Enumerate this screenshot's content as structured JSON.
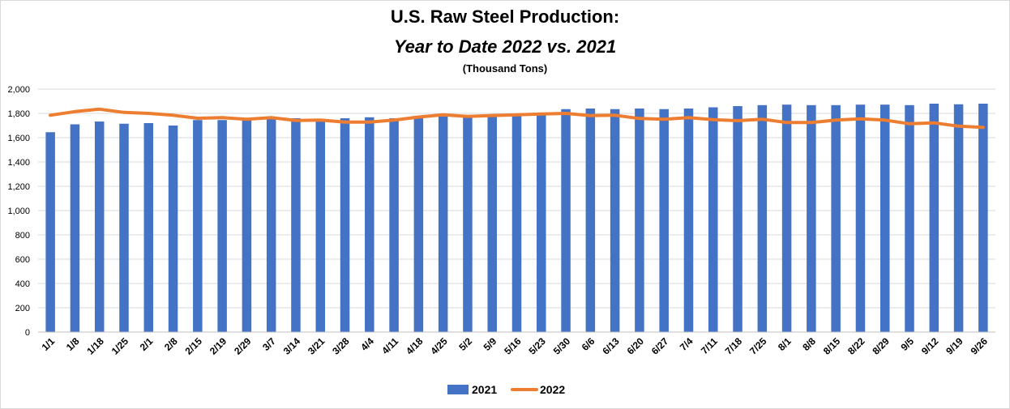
{
  "chart_data": {
    "type": "bar",
    "title": "U.S. Raw Steel Production:",
    "subtitle": "Year to Date 2022 vs. 2021",
    "unit_label": "(Thousand Tons)",
    "xlabel": "",
    "ylabel": "",
    "ylim": [
      0,
      2000
    ],
    "yticks": [
      0,
      200,
      400,
      600,
      800,
      1000,
      1200,
      1400,
      1600,
      1800,
      2000
    ],
    "ytick_labels": [
      "0",
      "200",
      "400",
      "600",
      "800",
      "1,000",
      "1,200",
      "1,400",
      "1,600",
      "1,800",
      "2,000"
    ],
    "grid": true,
    "legend_position": "bottom",
    "categories": [
      "1/1",
      "1/8",
      "1/18",
      "1/25",
      "2/1",
      "2/8",
      "2/15",
      "2/19",
      "2/29",
      "3/7",
      "3/14",
      "3/21",
      "3/28",
      "4/4",
      "4/11",
      "4/18",
      "4/25",
      "5/2",
      "5/9",
      "5/16",
      "5/23",
      "5/30",
      "6/6",
      "6/13",
      "6/20",
      "6/27",
      "7/4",
      "7/11",
      "7/18",
      "7/25",
      "8/1",
      "8/8",
      "8/15",
      "8/22",
      "8/29",
      "9/5",
      "9/12",
      "9/19",
      "9/26"
    ],
    "series": [
      {
        "name": "2021",
        "type": "bar",
        "color": "#4472c4",
        "values": [
          1645,
          1710,
          1733,
          1715,
          1720,
          1700,
          1745,
          1745,
          1750,
          1755,
          1760,
          1745,
          1760,
          1768,
          1760,
          1763,
          1775,
          1770,
          1775,
          1780,
          1785,
          1835,
          1840,
          1835,
          1840,
          1835,
          1840,
          1850,
          1860,
          1868,
          1872,
          1868,
          1868,
          1872,
          1872,
          1868,
          1880,
          1875,
          1880
        ]
      },
      {
        "name": "2022",
        "type": "line",
        "color": "#ed7d31",
        "values": [
          1785,
          1815,
          1835,
          1808,
          1800,
          1785,
          1760,
          1765,
          1752,
          1765,
          1742,
          1745,
          1728,
          1728,
          1745,
          1770,
          1788,
          1775,
          1783,
          1788,
          1795,
          1800,
          1782,
          1785,
          1758,
          1752,
          1765,
          1748,
          1740,
          1752,
          1725,
          1725,
          1745,
          1755,
          1745,
          1715,
          1722,
          1695,
          1685
        ]
      }
    ]
  }
}
